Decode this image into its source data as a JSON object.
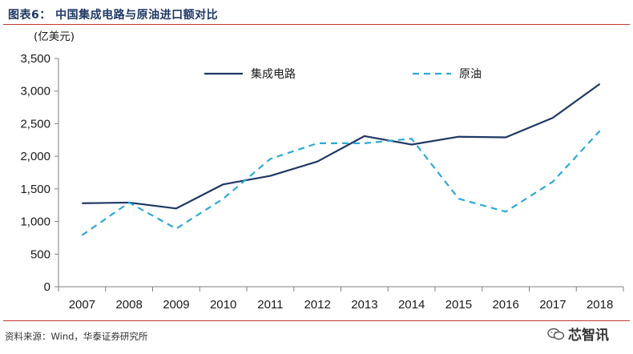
{
  "header": {
    "title": "图表6：  中国集成电路与原油进口额对比"
  },
  "footer": {
    "source": "资料来源：Wind，华泰证券研究所",
    "watermark": "芯智讯"
  },
  "chart_data": {
    "type": "line",
    "ylabel": "(亿美元)",
    "ylim": [
      0,
      3500
    ],
    "yticks": [
      0,
      500,
      1000,
      1500,
      2000,
      2500,
      3000,
      3500
    ],
    "ytick_labels": [
      "0",
      "500",
      "1,000",
      "1,500",
      "2,000",
      "2,500",
      "3,000",
      "3,500"
    ],
    "categories": [
      "2007",
      "2008",
      "2009",
      "2010",
      "2011",
      "2012",
      "2013",
      "2014",
      "2015",
      "2016",
      "2017",
      "2018"
    ],
    "grid": false,
    "legend_position": "top",
    "series": [
      {
        "name": "集成电路",
        "style": "solid",
        "color": "#1f3864",
        "values": [
          1280,
          1290,
          1200,
          1570,
          1700,
          1920,
          2310,
          2180,
          2300,
          2290,
          2590,
          3110
        ]
      },
      {
        "name": "原油",
        "style": "dashed",
        "color": "#2ea8d8",
        "values": [
          790,
          1290,
          890,
          1350,
          1960,
          2200,
          2200,
          2270,
          1350,
          1150,
          1610,
          2390
        ]
      }
    ]
  }
}
